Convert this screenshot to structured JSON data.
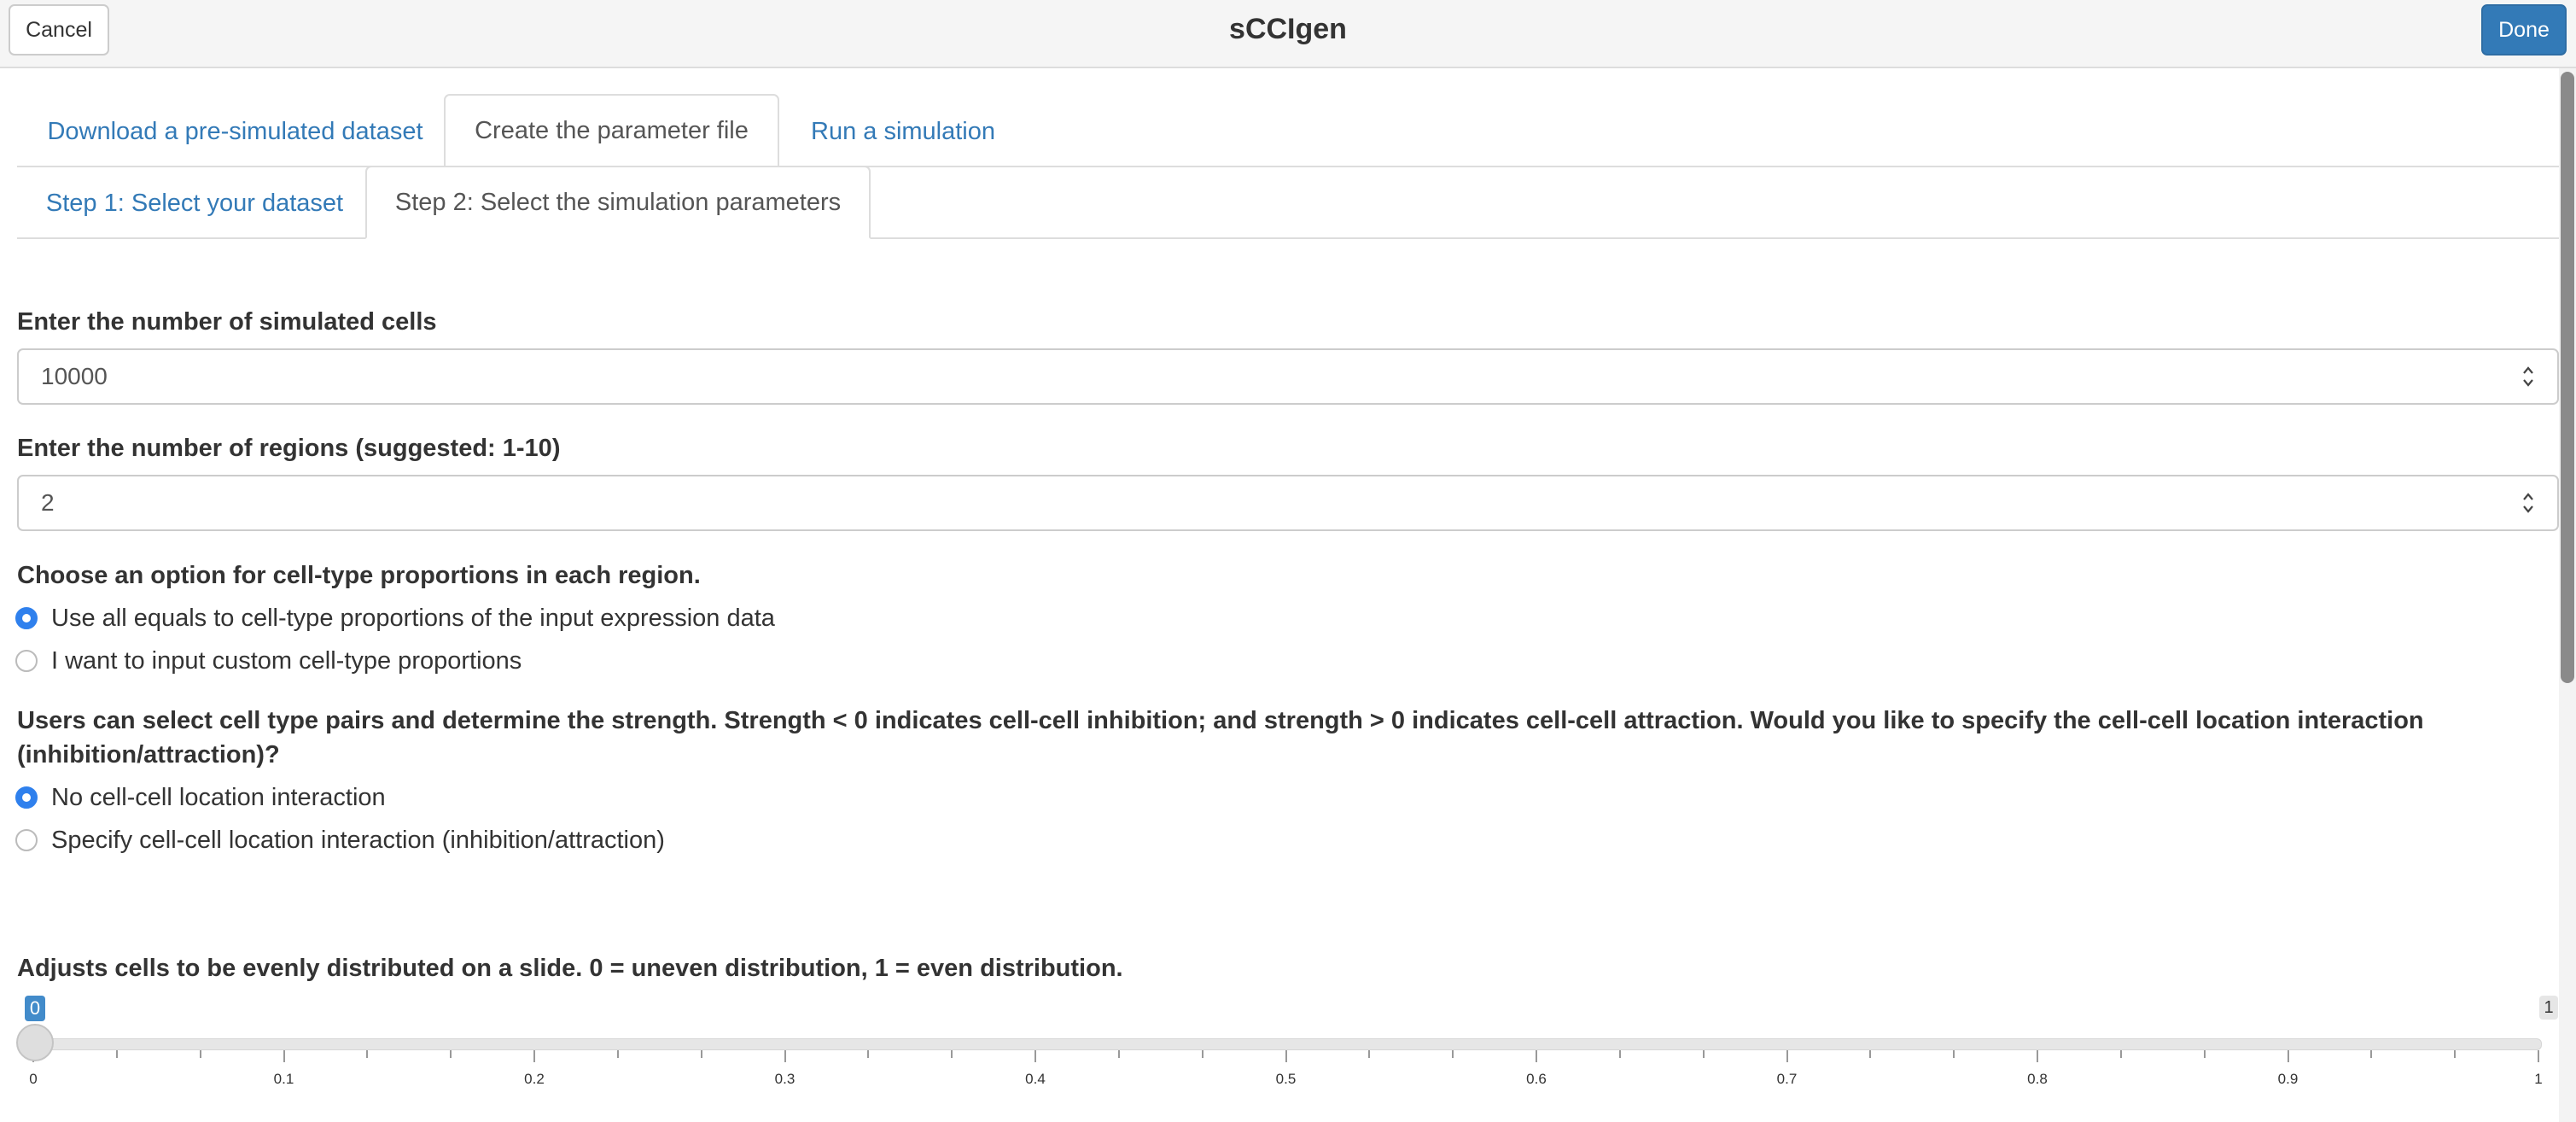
{
  "window": {
    "title": "sCCIgen",
    "cancel_label": "Cancel",
    "done_label": "Done"
  },
  "tabs": [
    {
      "label": "Download a pre-simulated dataset",
      "active": false
    },
    {
      "label": "Create the parameter file",
      "active": true
    },
    {
      "label": "Run a simulation",
      "active": false
    }
  ],
  "subtabs": [
    {
      "label": "Step 1: Select your dataset",
      "active": false
    },
    {
      "label": "Step 2: Select the simulation parameters",
      "active": true
    }
  ],
  "form": {
    "num_cells": {
      "label": "Enter the number of simulated cells",
      "value": "10000"
    },
    "num_regions": {
      "label": "Enter the number of regions (suggested: 1-10)",
      "value": "2"
    },
    "proportions": {
      "label": "Choose an option for cell-type proportions in each region.",
      "options": [
        {
          "label": "Use all equals to cell-type proportions of the input expression data",
          "selected": true
        },
        {
          "label": "I want to input custom cell-type proportions",
          "selected": false
        }
      ]
    },
    "interaction": {
      "label_line1": "Users can select cell type pairs and determine the strength. Strength < 0 indicates cell-cell inhibition; and strength > 0 indicates cell-cell attraction. Would you like to specify the cell-cell location interaction",
      "label_line2": "(inhibition/attraction)?",
      "options": [
        {
          "label": "No cell-cell location interaction",
          "selected": true
        },
        {
          "label": "Specify cell-cell location interaction (inhibition/attraction)",
          "selected": false
        }
      ]
    },
    "distribution": {
      "label": "Adjusts cells to be evenly distributed on a slide. 0 = uneven distribution, 1 = even distribution.",
      "value": 0,
      "min": 0,
      "max": 1,
      "min_display": "0",
      "max_display": "1",
      "tick_labels": [
        "0",
        "0.1",
        "0.2",
        "0.3",
        "0.4",
        "0.5",
        "0.6",
        "0.7",
        "0.8",
        "0.9",
        "1"
      ]
    }
  },
  "colors": {
    "accent": "#337ab7",
    "radio_selected": "#2f80ed"
  },
  "icons": {
    "spinner": "spinner-updown-icon",
    "radio_on": "radio-selected-icon",
    "radio_off": "radio-unselected-icon"
  }
}
